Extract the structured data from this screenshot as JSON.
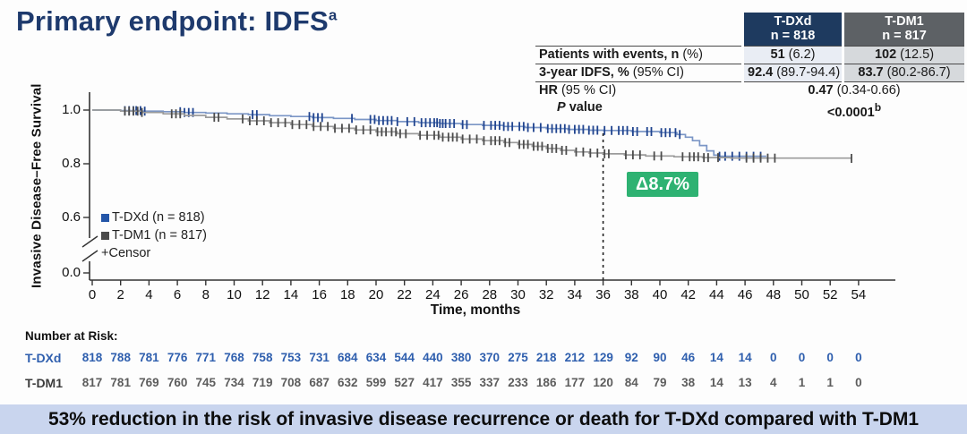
{
  "title": {
    "text": "Primary endpoint: IDFS",
    "sup": "a"
  },
  "stats_table": {
    "columns": [
      {
        "name": "T-DXd",
        "n": "n = 818",
        "header_bg": "#1e3a5f"
      },
      {
        "name": "T-DM1",
        "n": "n = 817",
        "header_bg": "#5d6165"
      }
    ],
    "rows": [
      {
        "label_strong": "Patients with events, n",
        "label_rest": " (%)",
        "tdxd_strong": "51",
        "tdxd_rest": " (6.2)",
        "tdm1_strong": "102",
        "tdm1_rest": " (12.5)"
      },
      {
        "label_strong": "3-year IDFS, %",
        "label_rest": " (95% CI)",
        "tdxd_strong": "92.4",
        "tdxd_rest": " (89.7-94.4)",
        "tdm1_strong": "83.7",
        "tdm1_rest": " (80.2-86.7)"
      }
    ],
    "hr_row": {
      "label_strong": "HR",
      "label_rest": " (95 % CI)",
      "value_strong": "0.47",
      "value_rest": " (0.34-0.66)"
    },
    "p_row": {
      "label_italic": "P",
      "label_rest": " value",
      "value": "<0.0001",
      "sup": "b"
    }
  },
  "chart_data": {
    "type": "line",
    "subtype": "kaplan-meier",
    "xlabel": "Time, months",
    "ylabel": "Invasive Disease–Free Survival",
    "x_ticks": [
      0,
      2,
      4,
      6,
      8,
      10,
      12,
      14,
      16,
      18,
      20,
      22,
      24,
      26,
      28,
      30,
      32,
      34,
      36,
      38,
      40,
      42,
      44,
      46,
      48,
      50,
      52,
      54
    ],
    "y_tick_labels": [
      "1.0",
      "0.8",
      "0.6",
      "0.0"
    ],
    "y_axis_break": true,
    "xlim": [
      0,
      54
    ],
    "reference_line_x": 36,
    "annotation": {
      "text": "Δ8.7%",
      "at_month": 38
    },
    "series": [
      {
        "key": "tdxd",
        "name": "T-DXd (n = 818)",
        "line_color": "#7b96c6",
        "censor_color": "#20448f",
        "points": [
          [
            0,
            1.0
          ],
          [
            2,
            0.998
          ],
          [
            3.5,
            0.996
          ],
          [
            5,
            0.994
          ],
          [
            6.5,
            0.991
          ],
          [
            8,
            0.989
          ],
          [
            9.5,
            0.986
          ],
          [
            11,
            0.983
          ],
          [
            12.5,
            0.979
          ],
          [
            14,
            0.976
          ],
          [
            15.5,
            0.972
          ],
          [
            17,
            0.969
          ],
          [
            18.5,
            0.965
          ],
          [
            20,
            0.961
          ],
          [
            21.5,
            0.957
          ],
          [
            23,
            0.953
          ],
          [
            24.5,
            0.95
          ],
          [
            26,
            0.946
          ],
          [
            27.5,
            0.943
          ],
          [
            29,
            0.939
          ],
          [
            30.5,
            0.935
          ],
          [
            32,
            0.931
          ],
          [
            33.5,
            0.928
          ],
          [
            35,
            0.925
          ],
          [
            36,
            0.924
          ],
          [
            38,
            0.92
          ],
          [
            40,
            0.916
          ],
          [
            41.2,
            0.909
          ],
          [
            41.8,
            0.899
          ],
          [
            42.3,
            0.886
          ],
          [
            42.8,
            0.868
          ],
          [
            43.3,
            0.848
          ],
          [
            43.8,
            0.832
          ],
          [
            44.2,
            0.828
          ],
          [
            47.5,
            0.828
          ]
        ],
        "censor_months": [
          2.3,
          2.6,
          2.9,
          3.1,
          3.4,
          3.7,
          6.2,
          6.5,
          6.8,
          7.1,
          11.3,
          11.6,
          15.3,
          15.6,
          15.9,
          16.2,
          18.3,
          19.6,
          19.9,
          20.2,
          20.5,
          20.8,
          21.1,
          21.5,
          22.2,
          22.7,
          23.2,
          23.5,
          23.8,
          24.1,
          24.3,
          24.5,
          24.7,
          24.9,
          25.2,
          25.5,
          26.1,
          26.4,
          27.6,
          28.1,
          28.4,
          28.7,
          29.0,
          29.3,
          29.6,
          30.1,
          30.4,
          30.7,
          31.1,
          31.6,
          32.1,
          32.4,
          32.7,
          33.0,
          33.3,
          33.6,
          34.0,
          34.3,
          34.6,
          35.0,
          35.3,
          35.6,
          36.1,
          36.6,
          37.1,
          37.4,
          37.7,
          38.1,
          38.4,
          39.1,
          39.4,
          40.1,
          40.4,
          40.7,
          41.1,
          41.4,
          44.2,
          44.6,
          45.1,
          45.6,
          46.1,
          46.6,
          47.1
        ]
      },
      {
        "key": "tdm1",
        "name": "T-DM1 (n = 817)",
        "line_color": "#9b9b9b",
        "censor_color": "#4c4c4c",
        "points": [
          [
            0,
            1.0
          ],
          [
            2,
            0.996
          ],
          [
            3.5,
            0.991
          ],
          [
            5,
            0.986
          ],
          [
            6.5,
            0.98
          ],
          [
            8,
            0.973
          ],
          [
            9.5,
            0.967
          ],
          [
            11,
            0.96
          ],
          [
            12.5,
            0.953
          ],
          [
            14,
            0.946
          ],
          [
            15.5,
            0.939
          ],
          [
            17,
            0.932
          ],
          [
            18.5,
            0.926
          ],
          [
            20,
            0.919
          ],
          [
            21.5,
            0.912
          ],
          [
            23,
            0.906
          ],
          [
            24.5,
            0.899
          ],
          [
            26,
            0.892
          ],
          [
            27.5,
            0.886
          ],
          [
            29,
            0.879
          ],
          [
            30,
            0.872
          ],
          [
            31,
            0.865
          ],
          [
            32,
            0.857
          ],
          [
            33,
            0.85
          ],
          [
            34,
            0.844
          ],
          [
            35,
            0.84
          ],
          [
            36,
            0.837
          ],
          [
            37.5,
            0.833
          ],
          [
            39,
            0.829
          ],
          [
            41,
            0.826
          ],
          [
            43,
            0.823
          ],
          [
            45,
            0.821
          ],
          [
            53.5,
            0.82
          ]
        ],
        "censor_months": [
          2.3,
          2.6,
          2.9,
          3.2,
          3.5,
          5.6,
          5.9,
          6.2,
          8.6,
          8.9,
          10.6,
          11.1,
          11.6,
          12.1,
          12.6,
          13.1,
          13.6,
          14.1,
          14.6,
          15.1,
          15.6,
          16.1,
          16.6,
          17.1,
          17.6,
          18.1,
          18.6,
          19.1,
          19.6,
          20.1,
          20.4,
          20.7,
          21.1,
          21.4,
          21.7,
          22.1,
          23.1,
          23.6,
          24.1,
          24.4,
          24.7,
          25.1,
          25.4,
          25.7,
          26.1,
          26.6,
          27.1,
          27.6,
          28.1,
          28.4,
          28.7,
          29.1,
          29.4,
          30.1,
          30.4,
          30.7,
          31.1,
          31.4,
          31.7,
          32.1,
          32.4,
          32.7,
          33.1,
          33.4,
          34.1,
          34.6,
          35.1,
          35.6,
          36.1,
          36.4,
          37.6,
          38.1,
          38.6,
          39.6,
          40.1,
          41.6,
          42.1,
          42.4,
          42.7,
          43.1,
          43.4,
          44.1,
          46.1,
          46.6,
          47.1,
          47.6,
          48.1,
          53.5
        ]
      }
    ]
  },
  "legend": {
    "tdxd": "T-DXd (n = 818)",
    "tdm1": "T-DM1 (n = 817)",
    "censor": "+Censor"
  },
  "delta_badge": "Δ8.7%",
  "number_at_risk": {
    "title": "Number at Risk:",
    "rows": [
      {
        "key": "tdxd",
        "label": "T-DXd",
        "color": "#2f5fae",
        "values": [
          818,
          788,
          781,
          776,
          771,
          768,
          758,
          753,
          731,
          684,
          634,
          544,
          440,
          380,
          370,
          275,
          218,
          212,
          129,
          92,
          90,
          46,
          14,
          14,
          0,
          0,
          0,
          0
        ]
      },
      {
        "key": "tdm1",
        "label": "T-DM1",
        "color": "#5d5d5d",
        "values": [
          817,
          781,
          769,
          760,
          745,
          734,
          719,
          708,
          687,
          632,
          599,
          527,
          417,
          355,
          337,
          233,
          186,
          177,
          120,
          84,
          79,
          38,
          14,
          13,
          4,
          1,
          1,
          0
        ]
      }
    ]
  },
  "banner": "53% reduction in the risk of invasive disease recurrence or death for T-DXd compared with T-DM1",
  "colors": {
    "title_navy": "#1e3a6d",
    "tdxd_header_bg": "#1e3a5f",
    "tdm1_header_bg": "#5d6165",
    "tdxd_cell_bg": "#e9edf4",
    "tdm1_cell_bg": "#d6d9dc",
    "badge_green": "#2eb272",
    "banner_bg": "#c9d5ee"
  }
}
